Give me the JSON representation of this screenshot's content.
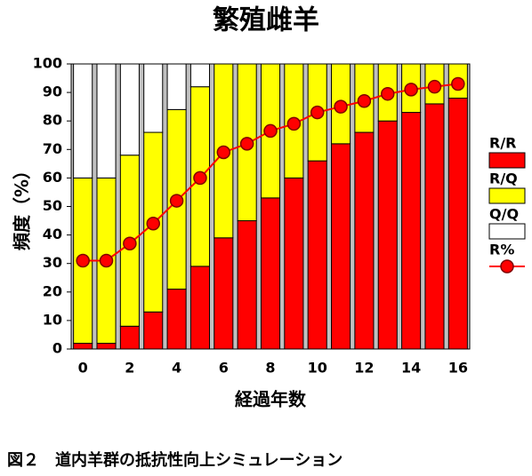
{
  "chart_data": {
    "type": "stacked_bar_line",
    "title": "繁殖雌羊",
    "x_label": "経過年数",
    "y_label": "頻度（%）",
    "caption": "図２　道内羊群の抵抗性向上シミュレーション",
    "categories": [
      "0",
      null,
      "2",
      null,
      "4",
      null,
      "6",
      null,
      "8",
      null,
      "10",
      null,
      "12",
      null,
      "14",
      null,
      "16"
    ],
    "series": [
      {
        "name": "R/R",
        "color": "#ff0000",
        "values": [
          2,
          2,
          8,
          13,
          21,
          29,
          39,
          45,
          53,
          60,
          66,
          72,
          76,
          80,
          83,
          86,
          88
        ]
      },
      {
        "name": "R/Q",
        "color": "#ffff00",
        "values": [
          58,
          58,
          60,
          63,
          63,
          63,
          61,
          55,
          47,
          40,
          34,
          28,
          24,
          20,
          17,
          14,
          12
        ]
      },
      {
        "name": "Q/Q",
        "color": "#ffffff",
        "values": [
          40,
          40,
          32,
          24,
          16,
          8,
          0,
          0,
          0,
          0,
          0,
          0,
          0,
          0,
          0,
          0,
          0
        ]
      },
      {
        "name": "R%",
        "color": "#ff0000",
        "type": "line",
        "values": [
          31,
          31,
          37,
          44,
          52,
          60,
          69,
          72,
          76.5,
          79,
          83,
          85,
          87,
          89.5,
          91,
          92,
          93
        ]
      }
    ],
    "ylim": [
      0,
      100
    ],
    "yticks": [
      0,
      10,
      20,
      30,
      40,
      50,
      60,
      70,
      80,
      90,
      100
    ]
  }
}
